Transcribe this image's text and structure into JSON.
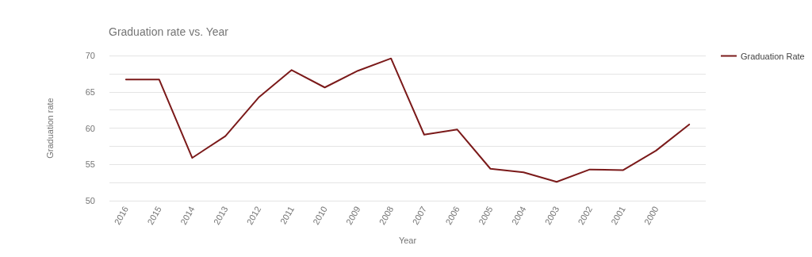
{
  "chart_data": {
    "type": "line",
    "title": "Graduation rate vs. Year",
    "xlabel": "Year",
    "ylabel": "Graduation rate",
    "categories": [
      "2016",
      "2015",
      "2014",
      "2013",
      "2012",
      "2011",
      "2010",
      "2009",
      "2008",
      "2007",
      "2006",
      "2005",
      "2004",
      "2003",
      "2002",
      "2001",
      "2000",
      null
    ],
    "series": [
      {
        "name": "Graduation Rate",
        "color": "#7b1a1a",
        "values": [
          66.7,
          66.7,
          55.9,
          58.9,
          64.2,
          68.0,
          65.6,
          67.9,
          69.6,
          59.1,
          59.8,
          54.4,
          53.9,
          52.6,
          54.3,
          54.2,
          56.9,
          60.5
        ]
      }
    ],
    "ylim": [
      50,
      70
    ],
    "yticks": [
      50,
      {
        "value": 52.5,
        "label": null
      },
      55,
      {
        "value": 57.5,
        "label": null
      },
      60,
      {
        "value": 62.5,
        "label": null
      },
      65,
      {
        "value": 67.5,
        "label": null
      },
      70
    ],
    "grid": "y",
    "legend": "top right",
    "marker": "none",
    "line_style": "solid"
  }
}
